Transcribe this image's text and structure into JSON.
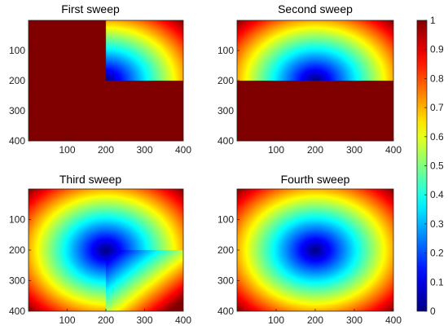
{
  "chart_data": [
    {
      "type": "heatmap",
      "title": "First sweep",
      "field": "distance",
      "source": [
        200,
        200
      ],
      "region": "top-right",
      "xlim": [
        0,
        400
      ],
      "ylim": [
        0,
        400
      ],
      "xticks": [
        100,
        200,
        300,
        400
      ],
      "yticks": [
        100,
        200,
        300,
        400
      ],
      "y_direction": "reverse",
      "fill_value": 1
    },
    {
      "type": "heatmap",
      "title": "Second sweep",
      "field": "distance",
      "source": [
        200,
        200
      ],
      "region": "top",
      "xlim": [
        0,
        400
      ],
      "ylim": [
        0,
        400
      ],
      "xticks": [
        100,
        200,
        300,
        400
      ],
      "yticks": [
        100,
        200,
        300,
        400
      ],
      "y_direction": "reverse",
      "fill_value": 1
    },
    {
      "type": "heatmap",
      "title": "Third sweep",
      "field": "distance",
      "source": [
        200,
        200
      ],
      "region": "all",
      "artifact": "bottom-right",
      "xlim": [
        0,
        400
      ],
      "ylim": [
        0,
        400
      ],
      "xticks": [
        100,
        200,
        300,
        400
      ],
      "yticks": [
        100,
        200,
        300,
        400
      ],
      "y_direction": "reverse"
    },
    {
      "type": "heatmap",
      "title": "Fourth sweep",
      "field": "distance",
      "source": [
        200,
        200
      ],
      "region": "all",
      "xlim": [
        0,
        400
      ],
      "ylim": [
        0,
        400
      ],
      "xticks": [
        100,
        200,
        300,
        400
      ],
      "yticks": [
        100,
        200,
        300,
        400
      ],
      "y_direction": "reverse"
    }
  ],
  "colorbar": {
    "colormap": "jet",
    "range": [
      0,
      1
    ],
    "ticks": [
      "0",
      "0.1",
      "0.2",
      "0.3",
      "0.4",
      "0.5",
      "0.6",
      "0.7",
      "0.8",
      "0.9",
      "1"
    ]
  }
}
